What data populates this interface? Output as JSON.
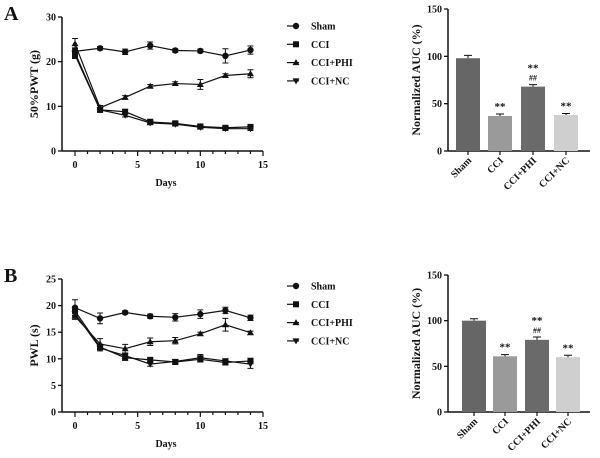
{
  "panels": [
    {
      "label": "A",
      "line": {
        "type": "line",
        "xlabel": "Days",
        "ylabel": "50%PWT (g)",
        "xlim": [
          0,
          15
        ],
        "ylim": [
          0,
          30
        ],
        "xticks": [
          0,
          5,
          10,
          15
        ],
        "yticks": [
          0,
          10,
          20,
          30
        ],
        "x": [
          0,
          2,
          4,
          6,
          8,
          10,
          12,
          14
        ],
        "series": [
          {
            "name": "Sham",
            "marker": "circle",
            "values": [
              22.3,
              23.0,
              22.2,
              23.6,
              22.5,
              22.4,
              21.3,
              22.6
            ],
            "err": [
              0.8,
              0.4,
              0.6,
              0.8,
              0.4,
              0.4,
              1.6,
              0.9
            ]
          },
          {
            "name": "CCI",
            "marker": "square",
            "values": [
              21.5,
              9.2,
              8.8,
              6.5,
              6.2,
              5.5,
              5.2,
              5.4
            ],
            "err": [
              0.8,
              0.5,
              0.5,
              0.6,
              0.4,
              0.4,
              0.4,
              0.4
            ]
          },
          {
            "name": "CCI+PHI",
            "marker": "triangle-up",
            "values": [
              24.0,
              9.7,
              12.0,
              14.5,
              15.1,
              14.9,
              16.9,
              17.3
            ],
            "err": [
              1.2,
              0.5,
              0.4,
              0.4,
              0.4,
              1.1,
              0.4,
              0.9
            ]
          },
          {
            "name": "CCI+NC",
            "marker": "triangle-down",
            "values": [
              22.0,
              9.2,
              8.0,
              6.3,
              6.0,
              5.3,
              5.0,
              5.0
            ],
            "err": [
              1.0,
              0.4,
              0.4,
              0.4,
              0.4,
              0.4,
              0.4,
              0.4
            ]
          }
        ],
        "legend": "right"
      },
      "bar": {
        "type": "bar",
        "ylabel": "Normalized AUC (%)",
        "ylim": [
          0,
          150
        ],
        "yticks": [
          0,
          50,
          100,
          150
        ],
        "categories": [
          "Sham",
          "CCI",
          "CCI+PHI",
          "CCI+NC"
        ],
        "values": [
          98,
          37,
          68,
          38
        ],
        "err": [
          2,
          1,
          1,
          0.5
        ],
        "colors": [
          "#666666",
          "#9a9a9a",
          "#6a6a6a",
          "#cfcfcf"
        ],
        "annotations": [
          [],
          [
            "**"
          ],
          [
            "**",
            "##"
          ],
          [
            "**"
          ]
        ]
      }
    },
    {
      "label": "B",
      "line": {
        "type": "line",
        "xlabel": "Days",
        "ylabel": "PWL (s)",
        "xlim": [
          0,
          15
        ],
        "ylim": [
          0,
          25
        ],
        "xticks": [
          0,
          5,
          10,
          15
        ],
        "yticks": [
          0,
          5,
          10,
          15,
          20,
          25
        ],
        "x": [
          0,
          2,
          4,
          6,
          8,
          10,
          12,
          14
        ],
        "series": [
          {
            "name": "Sham",
            "marker": "circle",
            "values": [
              19.6,
              17.6,
              18.7,
              18.0,
              17.8,
              18.4,
              19.1,
              17.7
            ],
            "err": [
              1.5,
              1.0,
              0.3,
              0.4,
              0.7,
              0.8,
              0.6,
              0.5
            ]
          },
          {
            "name": "CCI",
            "marker": "square",
            "values": [
              19.0,
              12.2,
              10.2,
              9.8,
              9.4,
              9.9,
              9.3,
              9.6
            ],
            "err": [
              0.8,
              0.5,
              0.5,
              0.4,
              0.4,
              0.5,
              0.4,
              0.5
            ]
          },
          {
            "name": "CCI+PHI",
            "marker": "triangle-up",
            "values": [
              18.0,
              12.8,
              11.9,
              13.2,
              13.4,
              14.7,
              16.4,
              14.9
            ],
            "err": [
              0.6,
              1.0,
              0.8,
              0.7,
              0.6,
              0.3,
              1.2,
              0.3
            ]
          },
          {
            "name": "CCI+NC",
            "marker": "triangle-down",
            "values": [
              18.5,
              12.0,
              10.6,
              9.0,
              9.5,
              10.2,
              9.6,
              9.0
            ],
            "err": [
              0.6,
              0.5,
              0.5,
              0.4,
              0.4,
              0.6,
              0.4,
              0.8
            ]
          }
        ],
        "legend": "right"
      },
      "bar": {
        "type": "bar",
        "ylabel": "Normalized AUC (%)",
        "ylim": [
          0,
          150
        ],
        "yticks": [
          0,
          50,
          100,
          150
        ],
        "categories": [
          "Sham",
          "CCI",
          "CCI+PHI",
          "CCI+NC"
        ],
        "values": [
          100,
          61,
          79,
          60
        ],
        "err": [
          1,
          0.7,
          2,
          1
        ],
        "colors": [
          "#666666",
          "#9a9a9a",
          "#6a6a6a",
          "#cfcfcf"
        ],
        "annotations": [
          [],
          [
            "**"
          ],
          [
            "**",
            "##"
          ],
          [
            "**"
          ]
        ]
      }
    }
  ]
}
